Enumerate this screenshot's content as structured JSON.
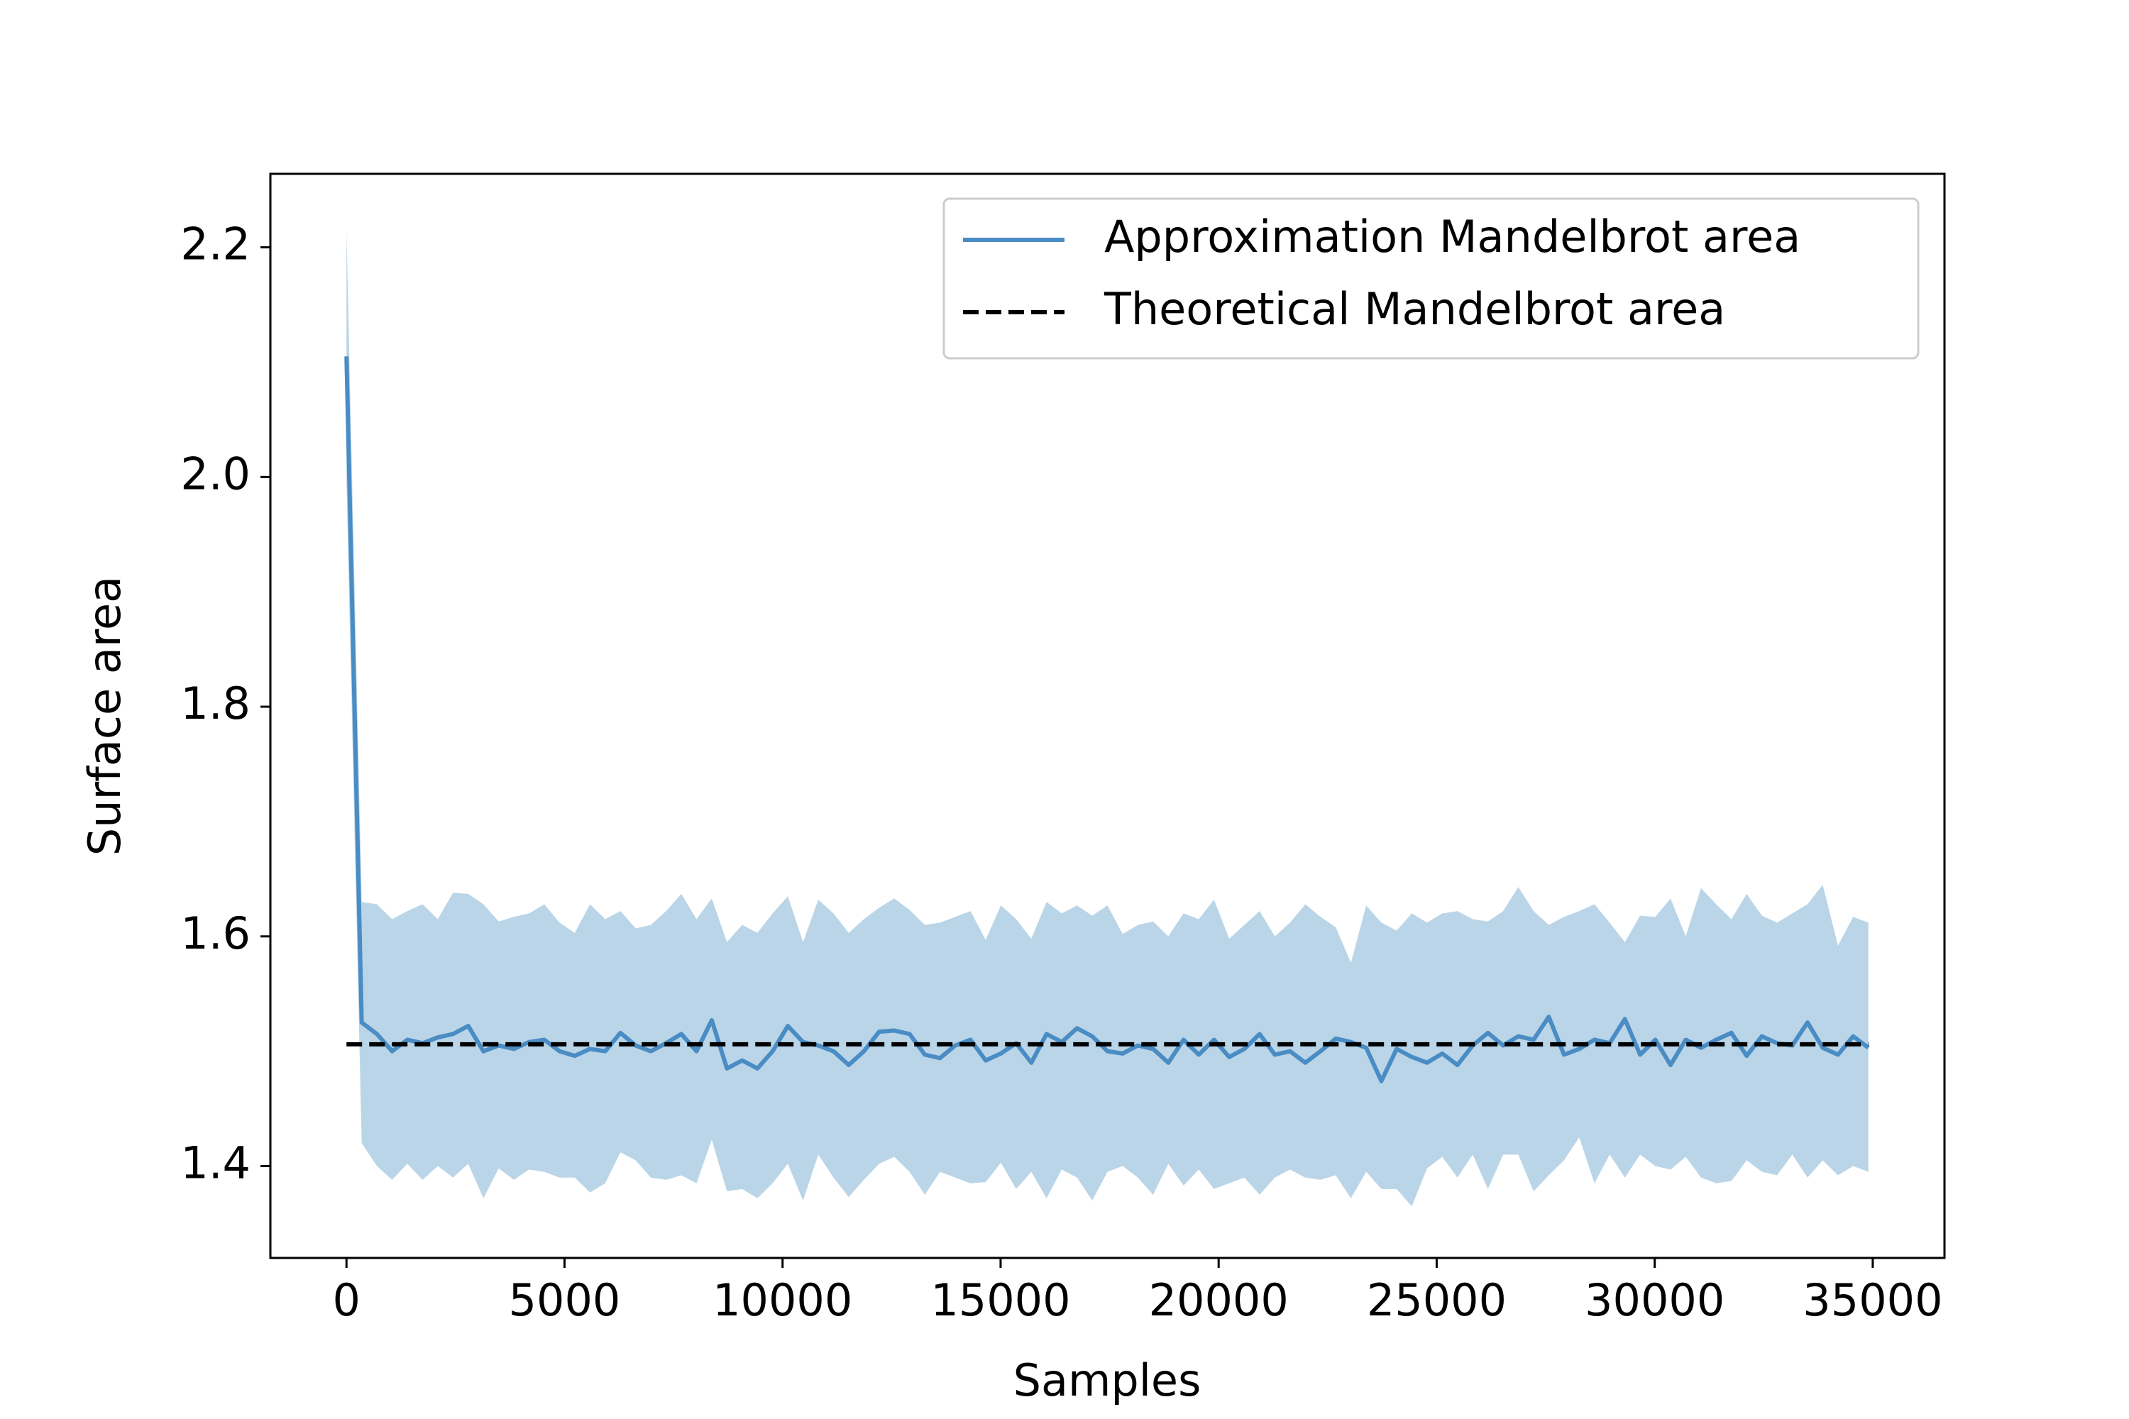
{
  "chart_data": {
    "type": "line_band",
    "xlabel": "Samples",
    "ylabel": "Surface area",
    "xlim": [
      -1745,
      36645
    ],
    "ylim": [
      1.32,
      2.264
    ],
    "xticks": [
      0,
      5000,
      10000,
      15000,
      20000,
      25000,
      30000,
      35000
    ],
    "yticks": [
      1.4,
      1.6,
      1.8,
      {
        "value": 2,
        "label": "2.0"
      },
      2.2
    ],
    "legend": "upper right",
    "x": [
      0,
      349,
      698,
      1047,
      1396,
      1745,
      2094,
      2443,
      2792,
      3141,
      3490,
      3839,
      4188,
      4537,
      4886,
      5235,
      5584,
      5933,
      6282,
      6631,
      6980,
      7329,
      7678,
      8027,
      8376,
      8725,
      9074,
      9423,
      9772,
      10121,
      10470,
      10819,
      11168,
      11517,
      11866,
      12215,
      12564,
      12913,
      13262,
      13611,
      13960,
      14309,
      14658,
      15007,
      15356,
      15705,
      16054,
      16403,
      16752,
      17101,
      17450,
      17799,
      18148,
      18497,
      18846,
      19195,
      19544,
      19893,
      20242,
      20591,
      20940,
      21289,
      21638,
      21987,
      22336,
      22685,
      23034,
      23383,
      23732,
      24081,
      24430,
      24779,
      25128,
      25477,
      25826,
      26175,
      26524,
      26873,
      27222,
      27571,
      27920,
      28269,
      28618,
      28967,
      29316,
      29665,
      30014,
      30363,
      30712,
      31061,
      31410,
      31759,
      32108,
      32457,
      32806,
      33155,
      33504,
      33853,
      34202,
      34551,
      34900
    ],
    "series": [
      {
        "name": "Approximation Mandelbrot area",
        "color": "#4a8cc4",
        "band_color": "#bad5e8",
        "values": [
          2.105,
          1.525,
          1.515,
          1.5,
          1.51,
          1.507,
          1.512,
          1.515,
          1.522,
          1.5,
          1.505,
          1.502,
          1.508,
          1.51,
          1.5,
          1.496,
          1.502,
          1.5,
          1.516,
          1.505,
          1.5,
          1.507,
          1.515,
          1.5,
          1.527,
          1.485,
          1.492,
          1.485,
          1.5,
          1.522,
          1.508,
          1.505,
          1.5,
          1.488,
          1.5,
          1.517,
          1.518,
          1.515,
          1.497,
          1.494,
          1.505,
          1.51,
          1.492,
          1.498,
          1.507,
          1.49,
          1.515,
          1.508,
          1.52,
          1.513,
          1.5,
          1.498,
          1.505,
          1.502,
          1.49,
          1.51,
          1.497,
          1.51,
          1.495,
          1.502,
          1.515,
          1.497,
          1.5,
          1.49,
          1.5,
          1.511,
          1.508,
          1.503,
          1.474,
          1.502,
          1.495,
          1.49,
          1.498,
          1.488,
          1.505,
          1.516,
          1.505,
          1.513,
          1.51,
          1.53,
          1.497,
          1.502,
          1.51,
          1.507,
          1.528,
          1.497,
          1.51,
          1.488,
          1.51,
          1.503,
          1.51,
          1.516,
          1.496,
          1.513,
          1.507,
          1.505,
          1.525,
          1.503,
          1.497,
          1.513,
          1.503
        ],
        "upper": [
          2.215,
          1.63,
          1.628,
          1.615,
          1.622,
          1.628,
          1.615,
          1.638,
          1.637,
          1.628,
          1.613,
          1.617,
          1.62,
          1.628,
          1.612,
          1.603,
          1.628,
          1.615,
          1.622,
          1.607,
          1.61,
          1.622,
          1.637,
          1.615,
          1.633,
          1.595,
          1.61,
          1.603,
          1.62,
          1.635,
          1.595,
          1.632,
          1.62,
          1.603,
          1.615,
          1.625,
          1.633,
          1.623,
          1.61,
          1.612,
          1.617,
          1.622,
          1.597,
          1.627,
          1.615,
          1.598,
          1.63,
          1.62,
          1.627,
          1.618,
          1.627,
          1.602,
          1.61,
          1.613,
          1.6,
          1.62,
          1.615,
          1.632,
          1.598,
          1.61,
          1.622,
          1.6,
          1.612,
          1.628,
          1.617,
          1.608,
          1.577,
          1.627,
          1.612,
          1.605,
          1.62,
          1.612,
          1.62,
          1.622,
          1.615,
          1.613,
          1.622,
          1.643,
          1.622,
          1.61,
          1.617,
          1.622,
          1.628,
          1.612,
          1.595,
          1.618,
          1.617,
          1.633,
          1.6,
          1.642,
          1.628,
          1.615,
          1.637,
          1.618,
          1.612,
          1.62,
          1.628,
          1.645,
          1.592,
          1.617,
          1.612
        ],
        "lower": [
          1.995,
          1.42,
          1.4,
          1.388,
          1.402,
          1.388,
          1.4,
          1.39,
          1.402,
          1.372,
          1.398,
          1.388,
          1.397,
          1.395,
          1.39,
          1.39,
          1.377,
          1.385,
          1.412,
          1.405,
          1.39,
          1.388,
          1.392,
          1.385,
          1.423,
          1.378,
          1.38,
          1.372,
          1.385,
          1.402,
          1.37,
          1.41,
          1.39,
          1.373,
          1.388,
          1.402,
          1.408,
          1.395,
          1.375,
          1.395,
          1.39,
          1.385,
          1.386,
          1.403,
          1.38,
          1.395,
          1.372,
          1.397,
          1.39,
          1.37,
          1.395,
          1.4,
          1.39,
          1.375,
          1.402,
          1.383,
          1.397,
          1.38,
          1.385,
          1.39,
          1.375,
          1.39,
          1.397,
          1.39,
          1.388,
          1.392,
          1.372,
          1.395,
          1.38,
          1.38,
          1.365,
          1.398,
          1.408,
          1.39,
          1.41,
          1.38,
          1.41,
          1.41,
          1.378,
          1.392,
          1.405,
          1.425,
          1.385,
          1.41,
          1.39,
          1.41,
          1.4,
          1.397,
          1.408,
          1.39,
          1.385,
          1.387,
          1.405,
          1.395,
          1.392,
          1.41,
          1.39,
          1.405,
          1.392,
          1.4,
          1.395
        ]
      },
      {
        "name": "Theoretical Mandelbrot area",
        "color": "#000000",
        "dashed": true,
        "value": 1.506
      }
    ]
  }
}
